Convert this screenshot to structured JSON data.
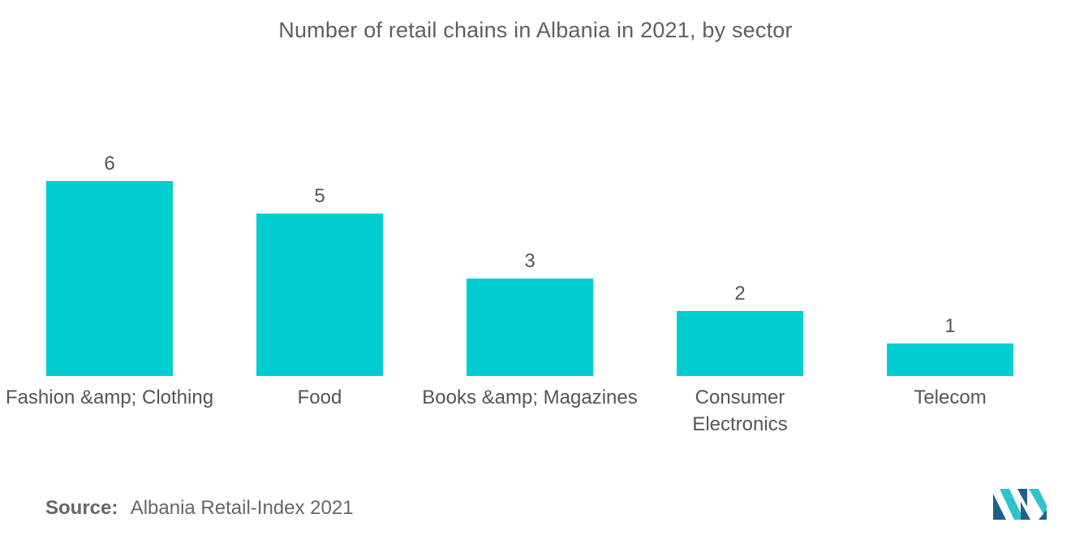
{
  "chart_data": {
    "type": "bar",
    "title": "Number of retail chains in Albania in 2021, by sector",
    "categories": [
      [
        "Fashion &amp; Clothing"
      ],
      [
        "Food"
      ],
      [
        "Books &amp; Magazines"
      ],
      [
        "Consumer",
        "Electronics"
      ],
      [
        "Telecom"
      ]
    ],
    "values": [
      6,
      5,
      3,
      2,
      1
    ],
    "data_labels": [
      "6",
      "5",
      "3",
      "2",
      "1"
    ],
    "xlabel": "",
    "ylabel": "",
    "ylim": [
      0,
      6
    ],
    "grid": false,
    "legend": "none",
    "bar_color": "#00CDD0"
  },
  "footer": {
    "source_label": "Source:",
    "source_text": "Albania Retail-Index 2021"
  },
  "colors": {
    "bar": "#00CDD0",
    "logo_dark": "#1e5f8c",
    "logo_light": "#2fc4cc"
  },
  "logo": {
    "icon": "mordor-intelligence-logo-icon"
  }
}
